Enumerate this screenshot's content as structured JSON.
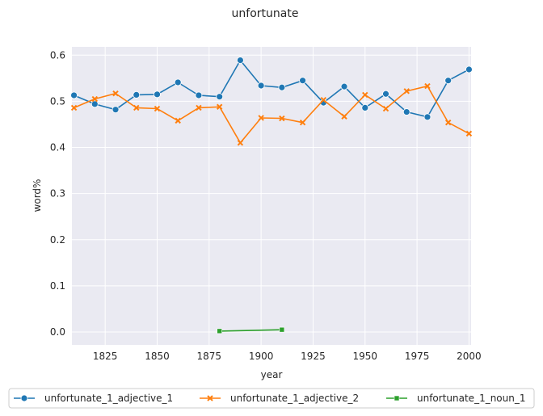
{
  "chart_data": {
    "type": "line",
    "title": "unfortunate",
    "xlabel": "year",
    "ylabel": "word%",
    "xlim": [
      1809,
      2001
    ],
    "ylim": [
      -0.028,
      0.618
    ],
    "xticks": [
      1825,
      1850,
      1875,
      1900,
      1925,
      1950,
      1975,
      2000
    ],
    "yticks": [
      0.0,
      0.1,
      0.2,
      0.3,
      0.4,
      0.5,
      0.6
    ],
    "ytick_labels": [
      "0.0",
      "0.1",
      "0.2",
      "0.3",
      "0.4",
      "0.5",
      "0.6"
    ],
    "grid": true,
    "legend_position": "bottom",
    "series": [
      {
        "name": "unfortunate_1_adjective_1",
        "color": "#1f77b4",
        "marker": "circle",
        "x": [
          1810,
          1820,
          1830,
          1840,
          1850,
          1860,
          1870,
          1880,
          1890,
          1900,
          1910,
          1920,
          1930,
          1940,
          1950,
          1960,
          1970,
          1980,
          1990,
          2000
        ],
        "y": [
          0.513,
          0.494,
          0.482,
          0.514,
          0.515,
          0.541,
          0.513,
          0.51,
          0.589,
          0.534,
          0.53,
          0.545,
          0.497,
          0.532,
          0.486,
          0.516,
          0.477,
          0.466,
          0.545,
          0.569
        ]
      },
      {
        "name": "unfortunate_1_adjective_2",
        "color": "#ff7f0e",
        "marker": "x",
        "x": [
          1810,
          1820,
          1830,
          1840,
          1850,
          1860,
          1870,
          1880,
          1890,
          1900,
          1910,
          1920,
          1930,
          1940,
          1950,
          1960,
          1970,
          1980,
          1990,
          2000
        ],
        "y": [
          0.486,
          0.505,
          0.517,
          0.486,
          0.484,
          0.458,
          0.486,
          0.488,
          0.41,
          0.464,
          0.463,
          0.454,
          0.503,
          0.467,
          0.514,
          0.484,
          0.522,
          0.533,
          0.454,
          0.43
        ]
      },
      {
        "name": "unfortunate_1_noun_1",
        "color": "#2ca02c",
        "marker": "square",
        "x": [
          1880,
          1910
        ],
        "y": [
          0.002,
          0.005
        ]
      }
    ]
  }
}
